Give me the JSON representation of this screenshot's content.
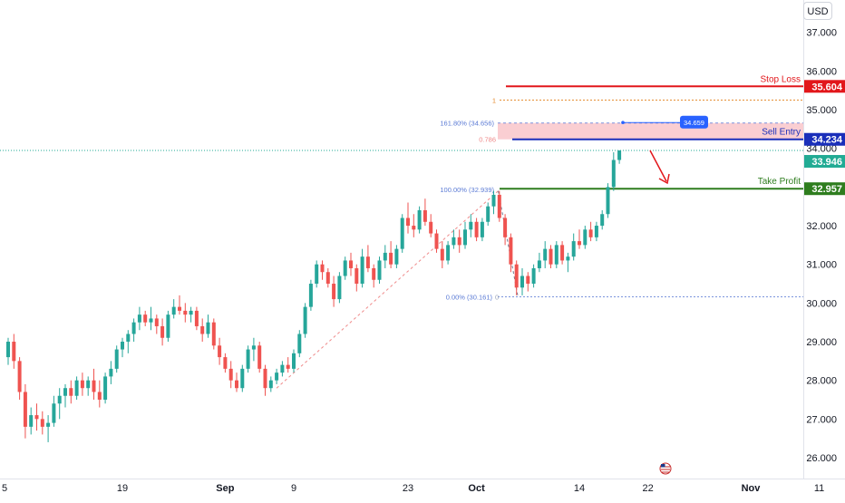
{
  "chart_data": {
    "type": "candlestick",
    "currency": "USD",
    "y_range": [
      25.8,
      37.5
    ],
    "y_ticks": [
      "37.000",
      "36.000",
      "35.000",
      "34.000",
      "33.000",
      "32.000",
      "31.000",
      "30.000",
      "29.000",
      "28.000",
      "27.000",
      "26.000"
    ],
    "x_ticks": [
      {
        "label": "5",
        "t": 0,
        "bold": false
      },
      {
        "label": "19",
        "t": 10,
        "bold": false
      },
      {
        "label": "Sep",
        "t": 19,
        "bold": true
      },
      {
        "label": "9",
        "t": 25,
        "bold": false
      },
      {
        "label": "23",
        "t": 35,
        "bold": false
      },
      {
        "label": "Oct",
        "t": 41,
        "bold": true
      },
      {
        "label": "14",
        "t": 50,
        "bold": false
      },
      {
        "label": "22",
        "t": 56,
        "bold": false
      },
      {
        "label": "Nov",
        "t": 65,
        "bold": true
      },
      {
        "label": "11",
        "t": 71,
        "bold": false
      }
    ],
    "colors": {
      "up": "#26a69a",
      "down": "#ef5350",
      "stop": "#e2171b",
      "entry": "#1a2fba",
      "tp": "#2e7d1e",
      "current": "#22ab94",
      "fib": "#5b7bd5",
      "zone": "#f9c9cd"
    },
    "levels": {
      "stop_loss": {
        "label": "Stop Loss",
        "value": "35.604"
      },
      "sell_entry": {
        "label": "Sell Entry",
        "value": "34.234"
      },
      "current": {
        "value": "33.946"
      },
      "take_profit": {
        "label": "Take Profit",
        "value": "32.957"
      }
    },
    "fib_labels": {
      "level_1": "1",
      "ext_161": "161.80% (34.656)",
      "ret_786": "0.786",
      "top_100": "100.00% (32.939)",
      "zero": "0.00% (30.161)",
      "zero_short": "0",
      "badge": "34.659"
    },
    "candles": [
      [
        0,
        28.6,
        29.1,
        28.4,
        29.0
      ],
      [
        0.5,
        29.0,
        29.2,
        28.3,
        28.5
      ],
      [
        1,
        28.5,
        28.6,
        27.5,
        27.7
      ],
      [
        1.5,
        27.7,
        27.9,
        26.5,
        26.8
      ],
      [
        2,
        26.8,
        27.3,
        26.6,
        27.1
      ],
      [
        2.5,
        27.1,
        27.4,
        26.7,
        27.0
      ],
      [
        3,
        27.0,
        27.2,
        26.6,
        26.8
      ],
      [
        3.5,
        26.8,
        27.1,
        26.4,
        26.9
      ],
      [
        4,
        26.9,
        27.6,
        26.8,
        27.4
      ],
      [
        4.5,
        27.4,
        27.8,
        27.0,
        27.6
      ],
      [
        5,
        27.6,
        27.9,
        27.3,
        27.8
      ],
      [
        5.5,
        27.8,
        28.0,
        27.4,
        27.6
      ],
      [
        6,
        27.6,
        28.1,
        27.5,
        28.0
      ],
      [
        6.5,
        28.0,
        28.2,
        27.6,
        27.8
      ],
      [
        7,
        27.8,
        28.1,
        27.6,
        28.0
      ],
      [
        7.5,
        28.0,
        28.3,
        27.5,
        27.7
      ],
      [
        8,
        27.7,
        28.0,
        27.3,
        27.5
      ],
      [
        8.5,
        27.5,
        28.2,
        27.4,
        28.1
      ],
      [
        9,
        28.1,
        28.5,
        27.9,
        28.3
      ],
      [
        9.5,
        28.3,
        28.9,
        28.2,
        28.8
      ],
      [
        10,
        28.8,
        29.1,
        28.6,
        29.0
      ],
      [
        10.5,
        29.0,
        29.3,
        28.7,
        29.2
      ],
      [
        11,
        29.2,
        29.6,
        29.0,
        29.5
      ],
      [
        11.5,
        29.5,
        29.9,
        29.3,
        29.7
      ],
      [
        12,
        29.7,
        29.8,
        29.4,
        29.5
      ],
      [
        12.5,
        29.5,
        29.9,
        29.3,
        29.6
      ],
      [
        13,
        29.6,
        29.7,
        29.2,
        29.4
      ],
      [
        13.5,
        29.4,
        29.6,
        28.9,
        29.1
      ],
      [
        14,
        29.1,
        29.8,
        29.0,
        29.7
      ],
      [
        14.5,
        29.7,
        30.1,
        29.6,
        29.9
      ],
      [
        15,
        29.9,
        30.2,
        29.7,
        29.8
      ],
      [
        15.5,
        29.8,
        30.0,
        29.5,
        29.7
      ],
      [
        16,
        29.7,
        29.9,
        29.5,
        29.8
      ],
      [
        16.5,
        29.8,
        29.9,
        29.3,
        29.4
      ],
      [
        17,
        29.4,
        29.6,
        29.0,
        29.2
      ],
      [
        17.5,
        29.2,
        29.7,
        29.1,
        29.5
      ],
      [
        18,
        29.5,
        29.6,
        28.8,
        28.9
      ],
      [
        18.5,
        28.9,
        29.1,
        28.4,
        28.6
      ],
      [
        19,
        28.6,
        28.7,
        28.2,
        28.3
      ],
      [
        19.5,
        28.3,
        28.5,
        27.8,
        28.0
      ],
      [
        20,
        28.0,
        28.2,
        27.7,
        27.8
      ],
      [
        20.5,
        27.8,
        28.4,
        27.7,
        28.3
      ],
      [
        21,
        28.3,
        28.9,
        28.2,
        28.8
      ],
      [
        21.5,
        28.8,
        29.1,
        28.5,
        28.9
      ],
      [
        22,
        28.9,
        29.0,
        28.2,
        28.3
      ],
      [
        22.5,
        28.3,
        28.4,
        27.6,
        27.8
      ],
      [
        23,
        27.8,
        28.1,
        27.7,
        28.0
      ],
      [
        23.5,
        28.0,
        28.3,
        27.9,
        28.2
      ],
      [
        24,
        28.2,
        28.5,
        28.1,
        28.4
      ],
      [
        24.5,
        28.4,
        28.6,
        28.2,
        28.3
      ],
      [
        25,
        28.3,
        28.8,
        28.2,
        28.7
      ],
      [
        25.5,
        28.7,
        29.3,
        28.6,
        29.2
      ],
      [
        26,
        29.2,
        30.0,
        29.1,
        29.9
      ],
      [
        26.5,
        29.9,
        30.6,
        29.8,
        30.5
      ],
      [
        27,
        30.5,
        31.1,
        30.4,
        31.0
      ],
      [
        27.5,
        31.0,
        31.1,
        30.6,
        30.8
      ],
      [
        28,
        30.8,
        30.9,
        30.4,
        30.5
      ],
      [
        28.5,
        30.5,
        30.7,
        29.9,
        30.1
      ],
      [
        29,
        30.1,
        30.8,
        30.0,
        30.7
      ],
      [
        29.5,
        30.7,
        31.2,
        30.6,
        31.1
      ],
      [
        30,
        31.1,
        31.3,
        30.7,
        30.9
      ],
      [
        30.5,
        30.9,
        31.0,
        30.3,
        30.5
      ],
      [
        31,
        30.5,
        31.4,
        30.4,
        31.2
      ],
      [
        31.5,
        31.2,
        31.5,
        30.8,
        30.9
      ],
      [
        32,
        30.9,
        31.0,
        30.4,
        30.6
      ],
      [
        32.5,
        30.6,
        31.2,
        30.5,
        31.1
      ],
      [
        33,
        31.1,
        31.5,
        30.9,
        31.3
      ],
      [
        33.5,
        31.3,
        31.6,
        30.9,
        31.0
      ],
      [
        34,
        31.0,
        31.5,
        30.9,
        31.4
      ],
      [
        34.5,
        31.4,
        32.3,
        31.3,
        32.2
      ],
      [
        35,
        32.2,
        32.6,
        31.8,
        32.0
      ],
      [
        35.5,
        32.0,
        32.3,
        31.7,
        31.9
      ],
      [
        36,
        31.9,
        32.5,
        31.8,
        32.4
      ],
      [
        36.5,
        32.4,
        32.7,
        32.0,
        32.1
      ],
      [
        37,
        32.1,
        32.3,
        31.7,
        31.8
      ],
      [
        37.5,
        31.8,
        31.9,
        31.3,
        31.4
      ],
      [
        38,
        31.4,
        31.6,
        30.9,
        31.1
      ],
      [
        38.5,
        31.1,
        31.6,
        31.0,
        31.5
      ],
      [
        39,
        31.5,
        31.9,
        31.4,
        31.7
      ],
      [
        39.5,
        31.7,
        31.9,
        31.3,
        31.5
      ],
      [
        40,
        31.5,
        32.1,
        31.4,
        31.9
      ],
      [
        40.5,
        31.9,
        32.3,
        31.7,
        32.1
      ],
      [
        41,
        32.1,
        32.2,
        31.6,
        31.7
      ],
      [
        41.5,
        31.7,
        32.2,
        31.6,
        32.1
      ],
      [
        42,
        32.1,
        32.6,
        32.0,
        32.5
      ],
      [
        42.5,
        32.5,
        32.9,
        32.3,
        32.8
      ],
      [
        43,
        32.8,
        32.9,
        32.1,
        32.2
      ],
      [
        43.5,
        32.2,
        32.3,
        31.5,
        31.7
      ],
      [
        44,
        31.7,
        31.8,
        30.8,
        31.0
      ],
      [
        44.5,
        31.0,
        31.1,
        30.2,
        30.4
      ],
      [
        45,
        30.4,
        30.9,
        30.2,
        30.7
      ],
      [
        45.5,
        30.7,
        30.8,
        30.3,
        30.5
      ],
      [
        46,
        30.5,
        31.0,
        30.4,
        30.9
      ],
      [
        46.5,
        30.9,
        31.3,
        30.8,
        31.1
      ],
      [
        47,
        31.1,
        31.6,
        30.9,
        31.4
      ],
      [
        47.5,
        31.4,
        31.5,
        30.9,
        31.0
      ],
      [
        48,
        31.0,
        31.6,
        30.9,
        31.5
      ],
      [
        48.5,
        31.5,
        31.6,
        31.0,
        31.1
      ],
      [
        49,
        31.1,
        31.3,
        30.8,
        31.2
      ],
      [
        49.5,
        31.2,
        31.8,
        31.1,
        31.6
      ],
      [
        50,
        31.6,
        31.9,
        31.4,
        31.5
      ],
      [
        50.5,
        31.5,
        32.0,
        31.4,
        31.9
      ],
      [
        51,
        31.9,
        32.1,
        31.6,
        31.7
      ],
      [
        51.5,
        31.7,
        32.1,
        31.6,
        32.0
      ],
      [
        52,
        32.0,
        32.4,
        31.9,
        32.3
      ],
      [
        52.5,
        32.3,
        33.1,
        32.2,
        33.0
      ],
      [
        53,
        33.0,
        33.9,
        32.9,
        33.7
      ],
      [
        53.5,
        33.7,
        33.95,
        33.6,
        33.946
      ]
    ]
  }
}
